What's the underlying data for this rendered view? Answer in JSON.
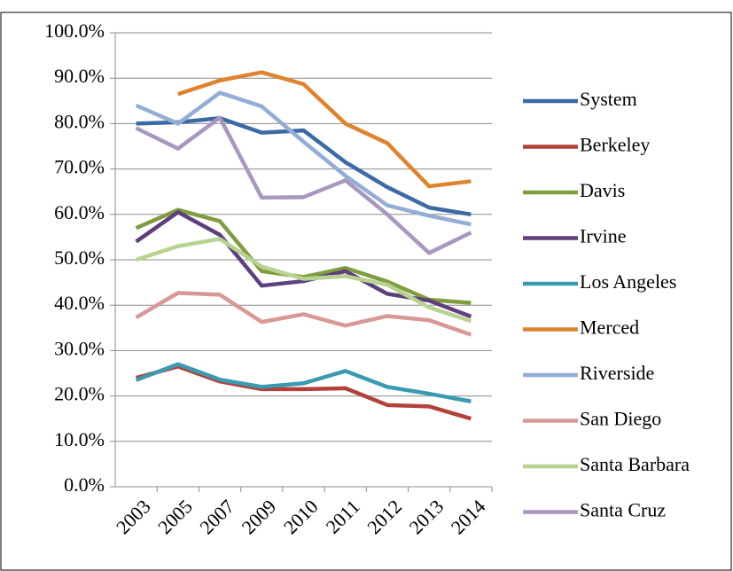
{
  "chart_data": {
    "type": "line",
    "categories": [
      "2003",
      "2005",
      "2007",
      "2009",
      "2010",
      "2011",
      "2012",
      "2013",
      "2014"
    ],
    "series": [
      {
        "name": "System",
        "color": "#3c6aa4",
        "values": [
          80,
          80.3,
          81.2,
          78,
          78.5,
          71.5,
          66,
          61.5,
          60
        ]
      },
      {
        "name": "Berkeley",
        "color": "#b4403c",
        "values": [
          24,
          26.5,
          23.2,
          21.5,
          21.5,
          21.7,
          18,
          17.7,
          15
        ]
      },
      {
        "name": "Davis",
        "color": "#7f9d3f",
        "values": [
          57,
          61,
          58.5,
          47.5,
          46.2,
          48.2,
          45.2,
          41.2,
          40.5
        ]
      },
      {
        "name": "Irvine",
        "color": "#5e3f7e",
        "values": [
          54,
          60.5,
          55.5,
          44.3,
          45.3,
          47.5,
          42.5,
          41,
          37.5
        ]
      },
      {
        "name": "Los Angeles",
        "color": "#3a9bb0",
        "values": [
          23.5,
          27,
          23.6,
          22,
          22.8,
          25.5,
          22,
          20.5,
          18.8
        ]
      },
      {
        "name": "Merced",
        "color": "#e0832f",
        "values": [
          null,
          86.5,
          89.5,
          91.3,
          88.7,
          80,
          75.7,
          66.2,
          67.3
        ]
      },
      {
        "name": "Riverside",
        "color": "#93add6",
        "values": [
          84,
          80,
          86.8,
          83.8,
          76,
          68.5,
          62,
          59.7,
          57.8
        ]
      },
      {
        "name": "San Diego",
        "color": "#d89896",
        "values": [
          37.3,
          42.7,
          42.3,
          36.3,
          38,
          35.5,
          37.6,
          36.7,
          33.5
        ]
      },
      {
        "name": "Santa Barbara",
        "color": "#b8d38f",
        "values": [
          50,
          53,
          54.6,
          48.5,
          45.8,
          46.4,
          44.5,
          39.5,
          36.5
        ]
      },
      {
        "name": "Santa Cruz",
        "color": "#a897bf",
        "values": [
          79,
          74.5,
          81.3,
          63.7,
          63.8,
          67.5,
          60,
          51.5,
          56
        ]
      }
    ],
    "ylim": [
      0,
      100
    ],
    "yticks": [
      {
        "value": 0,
        "label": "0.0%"
      },
      {
        "value": 10,
        "label": "10.0%"
      },
      {
        "value": 20,
        "label": "20.0%"
      },
      {
        "value": 30,
        "label": "30.0%"
      },
      {
        "value": 40,
        "label": "40.0%"
      },
      {
        "value": 50,
        "label": "50.0%"
      },
      {
        "value": 60,
        "label": "60.0%"
      },
      {
        "value": 70,
        "label": "70.0%"
      },
      {
        "value": 80,
        "label": "80.0%"
      },
      {
        "value": 90,
        "label": "90.0%"
      },
      {
        "value": 100,
        "label": "100.0%"
      }
    ],
    "grid": true,
    "legend": "right"
  }
}
